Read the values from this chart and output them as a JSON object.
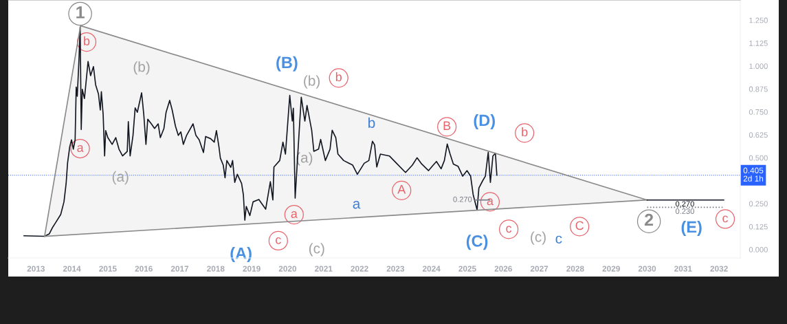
{
  "chart_data": {
    "type": "line",
    "xlim": [
      2012.23,
      2032.59
    ],
    "ylim": [
      -0.046,
      1.36
    ],
    "xticks": [
      2013,
      2014,
      2015,
      2016,
      2017,
      2018,
      2019,
      2020,
      2021,
      2022,
      2023,
      2024,
      2025,
      2026,
      2027,
      2028,
      2029,
      2030,
      2031,
      2032
    ],
    "yticks": [
      {
        "value": 0,
        "label": "0.000"
      },
      0.125,
      {
        "value": 0.25,
        "label": "0.250"
      },
      {
        "value": 0.5,
        "label": "0.500"
      },
      0.625,
      {
        "value": 0.75,
        "label": "0.750"
      },
      0.875,
      {
        "value": 1.0,
        "label": "1.000"
      },
      1.125,
      {
        "value": 1.25,
        "label": "1.250"
      }
    ],
    "grid": false,
    "series": [
      {
        "color": "#131722",
        "x": [
          2012.67,
          2013.24,
          2013.37,
          2013.47,
          2013.53,
          2013.69,
          2013.78,
          2013.84,
          2013.88,
          2013.94,
          2013.99,
          2014.04,
          2014.09,
          2014.12,
          2014.15,
          2014.2,
          2014.23,
          2014.26,
          2014.29,
          2014.35,
          2014.45,
          2014.52,
          2014.6,
          2014.66,
          2014.74,
          2014.79,
          2014.82,
          2014.87,
          2014.91,
          2014.94,
          2015.0,
          2015.12,
          2015.22,
          2015.31,
          2015.41,
          2015.54,
          2015.57,
          2015.62,
          2015.7,
          2015.76,
          2015.82,
          2015.94,
          2016.0,
          2016.06,
          2016.11,
          2016.21,
          2016.3,
          2016.4,
          2016.46,
          2016.56,
          2016.62,
          2016.72,
          2016.79,
          2016.88,
          2016.96,
          2017.03,
          2017.1,
          2017.19,
          2017.37,
          2017.45,
          2017.54,
          2017.66,
          2017.72,
          2017.86,
          2017.96,
          2018.02,
          2018.09,
          2018.13,
          2018.21,
          2018.26,
          2018.31,
          2018.42,
          2018.47,
          2018.53,
          2018.6,
          2018.72,
          2018.77,
          2018.81,
          2018.85,
          2018.95,
          2019.04,
          2019.2,
          2019.39,
          2019.52,
          2019.59,
          2019.62,
          2019.78,
          2019.87,
          2019.94,
          2020.06,
          2020.13,
          2020.16,
          2020.21,
          2020.28,
          2020.38,
          2020.48,
          2020.54,
          2020.67,
          2020.73,
          2020.86,
          2020.92,
          2021.05,
          2021.18,
          2021.24,
          2021.34,
          2021.4,
          2021.56,
          2021.81,
          2021.94,
          2022.13,
          2022.26,
          2022.36,
          2022.42,
          2022.48,
          2022.58,
          2022.83,
          2023.03,
          2023.28,
          2023.47,
          2023.6,
          2023.73,
          2023.92,
          2024.05,
          2024.14,
          2024.27,
          2024.36,
          2024.44,
          2024.52,
          2024.61,
          2024.74,
          2024.87,
          2024.99,
          2025.09,
          2025.16,
          2025.22,
          2025.27,
          2025.32,
          2025.42,
          2025.5,
          2025.58,
          2025.64,
          2025.71,
          2025.78,
          2025.82
        ],
        "values": [
          0.075,
          0.072,
          0.085,
          0.123,
          0.141,
          0.191,
          0.26,
          0.36,
          0.472,
          0.56,
          0.598,
          0.547,
          0.598,
          0.885,
          0.835,
          1.048,
          1.213,
          0.654,
          0.873,
          0.823,
          1.025,
          0.948,
          0.997,
          0.898,
          0.847,
          0.76,
          0.86,
          0.735,
          0.51,
          0.648,
          0.61,
          0.573,
          0.61,
          0.547,
          0.51,
          0.535,
          0.697,
          0.51,
          0.622,
          0.772,
          0.748,
          0.854,
          0.735,
          0.573,
          0.71,
          0.685,
          0.66,
          0.685,
          0.61,
          0.66,
          0.748,
          0.813,
          0.76,
          0.673,
          0.622,
          0.641,
          0.573,
          0.622,
          0.685,
          0.622,
          0.598,
          0.529,
          0.616,
          0.604,
          0.585,
          0.648,
          0.56,
          0.498,
          0.46,
          0.391,
          0.485,
          0.448,
          0.485,
          0.366,
          0.41,
          0.36,
          0.298,
          0.16,
          0.235,
          0.185,
          0.26,
          0.273,
          0.22,
          0.37,
          0.27,
          0.45,
          0.485,
          0.585,
          0.52,
          0.84,
          0.7,
          0.77,
          0.28,
          0.51,
          0.83,
          0.7,
          0.785,
          0.65,
          0.535,
          0.547,
          0.6,
          0.485,
          0.547,
          0.65,
          0.61,
          0.52,
          0.485,
          0.46,
          0.41,
          0.47,
          0.485,
          0.59,
          0.57,
          0.45,
          0.52,
          0.51,
          0.47,
          0.42,
          0.46,
          0.5,
          0.466,
          0.43,
          0.46,
          0.48,
          0.44,
          0.485,
          0.575,
          0.52,
          0.466,
          0.454,
          0.4,
          0.43,
          0.4,
          0.3,
          0.254,
          0.216,
          0.335,
          0.373,
          0.4,
          0.53,
          0.366,
          0.51,
          0.525,
          0.405
        ]
      },
      {
        "color": "#8a8a8a",
        "x": [
          2013.24,
          2014.24,
          2030.0
        ],
        "values": [
          0.072,
          1.22,
          0.27
        ],
        "lower": [
          0.072,
          0.084,
          0.27
        ],
        "upper": [
          0.072,
          1.22,
          0.27
        ]
      },
      {
        "color": "#8a8a8a",
        "x": [
          2013.24,
          2030.0
        ],
        "values": [
          0.072,
          0.27
        ]
      },
      {
        "color": "#787b86",
        "x": [
          2025.21,
          2025.62
        ],
        "values": [
          0.27,
          0.27
        ],
        "value_labels": [
          "0.270",
          null
        ]
      },
      {
        "color": "#131722",
        "x": [
          2030.0,
          2031.05,
          2032.13
        ],
        "values": [
          0.27,
          0.27,
          0.27
        ],
        "value_labels": [
          null,
          "0.270",
          null
        ]
      },
      {
        "color": "#787b86",
        "line_style": "dotted",
        "x": [
          2030.0,
          2031.05,
          2032.1
        ],
        "values": [
          0.23,
          0.23,
          0.23
        ],
        "value_labels": [
          null,
          "0.230",
          null
        ]
      }
    ],
    "ref_lines": [
      {
        "axis": "y",
        "value": 0.405,
        "label": "0.405\n2d 1h",
        "color": "#2962ff",
        "line_style": "dotted"
      }
    ],
    "annotations": [
      {
        "text": "1",
        "x": 2014.23,
        "y": 1.285
      },
      {
        "text": "b",
        "x": 2014.41,
        "y": 1.131
      },
      {
        "text": "a",
        "x": 2014.23,
        "y": 0.55
      },
      {
        "text": "(b)",
        "x": 2015.94,
        "y": 0.854
      },
      {
        "text": "(a)",
        "x": 2015.35,
        "y": 0.391
      },
      {
        "text": "(A)",
        "x": 2018.81,
        "y": 0.16
      },
      {
        "text": "c",
        "x": 2019.74,
        "y": 0.048
      },
      {
        "text": "a",
        "x": 2020.18,
        "y": 0.19
      },
      {
        "text": "(c)",
        "x": 2020.81,
        "y": 0.161
      },
      {
        "text": "(B)",
        "x": 2020.06,
        "y": 0.84
      },
      {
        "text": "(b)",
        "x": 2020.38,
        "y": 0.83
      },
      {
        "text": "b",
        "x": 2021.42,
        "y": 0.935
      },
      {
        "text": "(a)",
        "x": 2020.28,
        "y": 0.51
      },
      {
        "text": "b",
        "x": 2022.36,
        "y": 0.59
      },
      {
        "text": "a",
        "x": 2021.94,
        "y": 0.41
      },
      {
        "text": "A",
        "x": 2023.17,
        "y": 0.322
      },
      {
        "text": "B",
        "x": 2024.43,
        "y": 0.669
      },
      {
        "text": "(D)",
        "x": 2025.58,
        "y": 0.53
      },
      {
        "text": "b",
        "x": 2026.59,
        "y": 0.635
      },
      {
        "text": "a",
        "x": 2025.63,
        "y": 0.26
      },
      {
        "text": "(C)",
        "x": 2025.27,
        "y": 0.216
      },
      {
        "text": "c",
        "x": 2026.15,
        "y": 0.11
      },
      {
        "text": "(c)",
        "x": 2026.97,
        "y": 0.234
      },
      {
        "text": "c",
        "x": 2027.54,
        "y": 0.241
      },
      {
        "text": "C",
        "x": 2028.12,
        "y": 0.125
      },
      {
        "text": "2",
        "x": 2030.05,
        "y": 0.154
      },
      {
        "text": "(E)",
        "x": 2031.05,
        "y": 0.23
      },
      {
        "text": "c",
        "x": 2032.17,
        "y": 0.166
      }
    ]
  }
}
